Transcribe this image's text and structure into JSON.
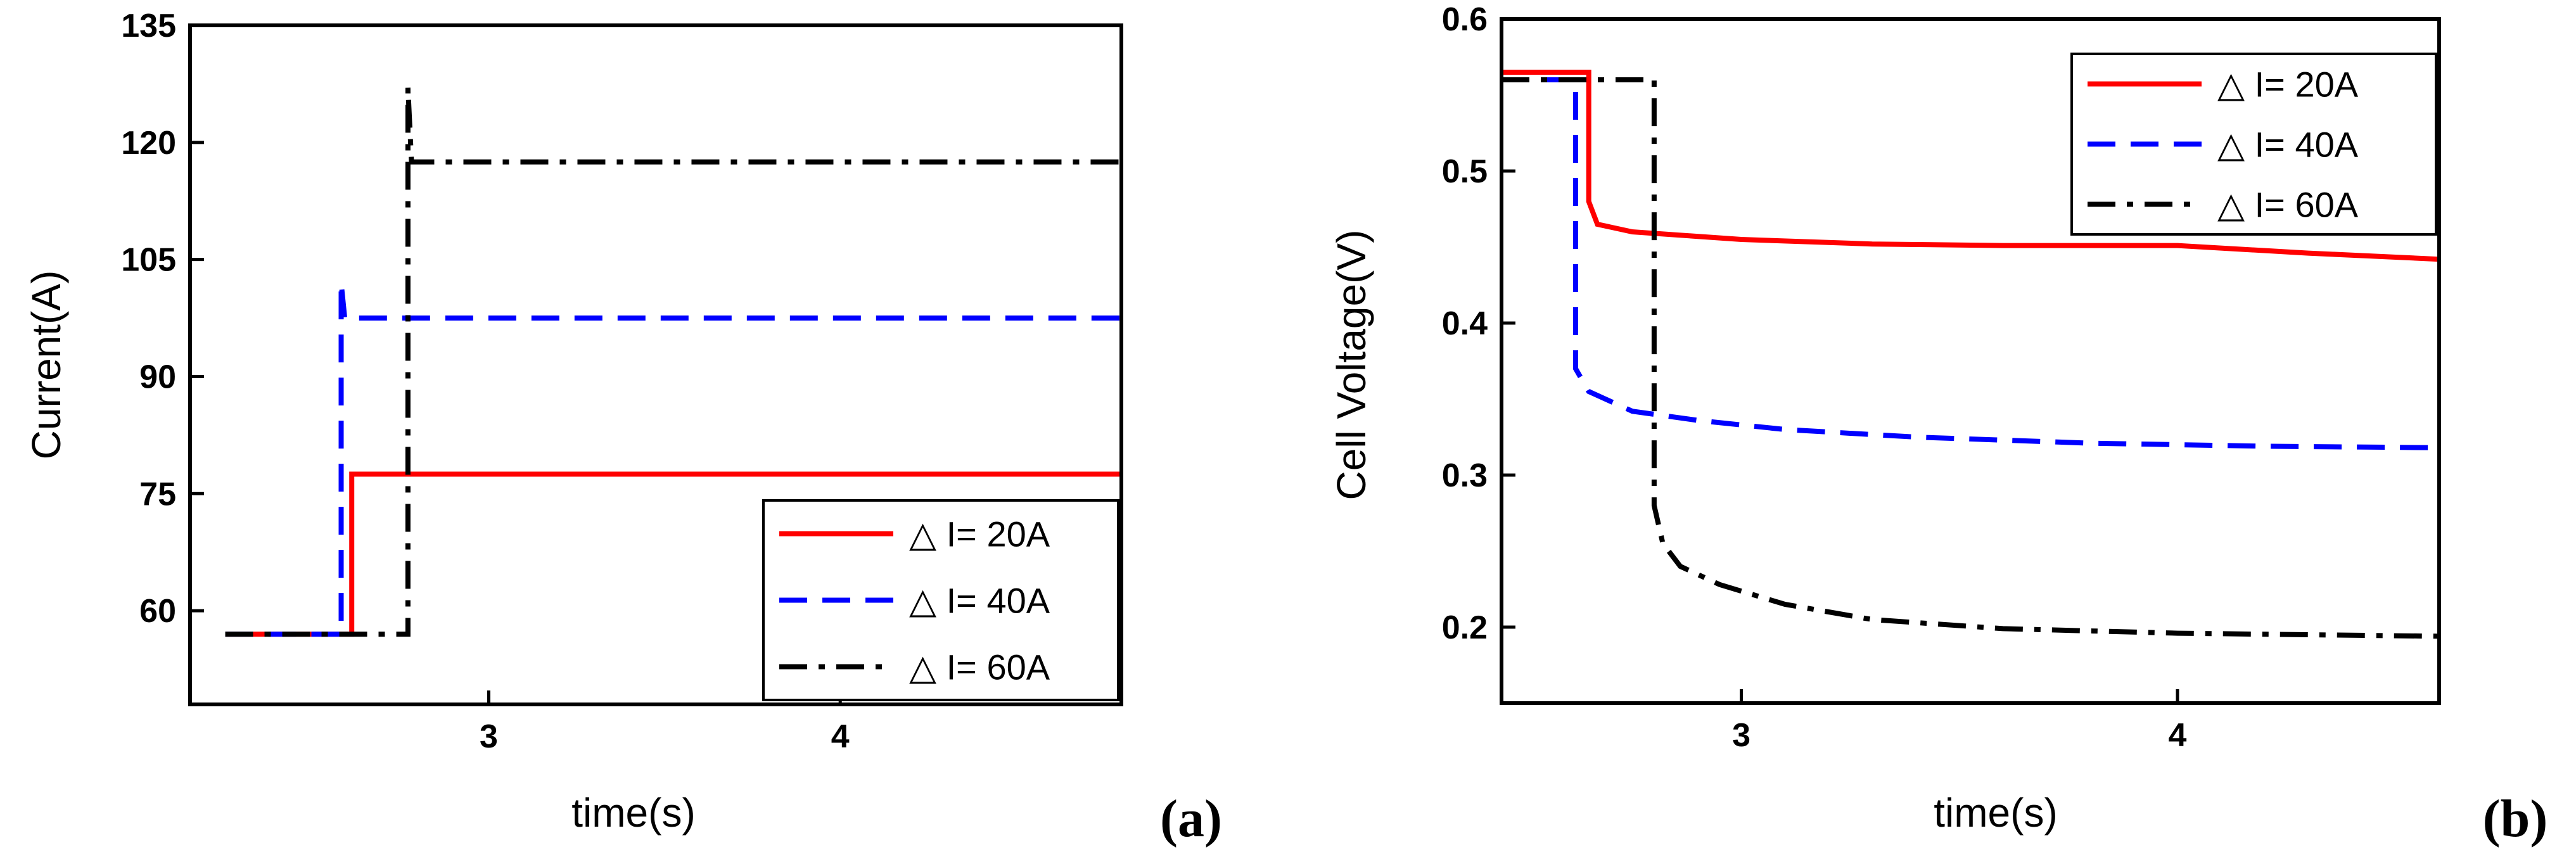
{
  "chart_data": [
    {
      "type": "line",
      "panel_label": "(a)",
      "xlabel": "time(s)",
      "ylabel": "Current(A)",
      "xlim": [
        2.15,
        4.8
      ],
      "ylim": [
        48,
        135
      ],
      "xticks": [
        3,
        4
      ],
      "xtick_labels": [
        "3",
        "4"
      ],
      "yticks": [
        60,
        75,
        90,
        105,
        120,
        135
      ],
      "ytick_labels": [
        "60",
        "75",
        "90",
        "105",
        "120",
        "135"
      ],
      "legend": {
        "placement": "bottom-right"
      },
      "series": [
        {
          "name": "△ I= 20A",
          "color": "#ff0000",
          "dash": "solid",
          "points": [
            [
              2.25,
              57
            ],
            [
              2.6,
              57
            ],
            [
              2.61,
              57
            ],
            [
              2.61,
              77.5
            ],
            [
              4.8,
              77.5
            ]
          ]
        },
        {
          "name": "△ I= 40A",
          "color": "#0000ff",
          "dash": "dash",
          "points": [
            [
              2.25,
              57
            ],
            [
              2.58,
              57
            ],
            [
              2.58,
              102
            ],
            [
              2.59,
              97.5
            ],
            [
              4.8,
              97.5
            ]
          ]
        },
        {
          "name": "△ I= 60A",
          "color": "#000000",
          "dash": "dashdot",
          "points": [
            [
              2.25,
              57
            ],
            [
              2.66,
              57
            ],
            [
              2.77,
              57
            ],
            [
              2.77,
              127
            ],
            [
              2.78,
              117.5
            ],
            [
              4.8,
              117.5
            ]
          ]
        }
      ]
    },
    {
      "type": "line",
      "panel_label": "(b)",
      "xlabel": "time(s)",
      "ylabel": "Cell Voltage(V)",
      "xlim": [
        2.45,
        4.6
      ],
      "ylim": [
        0.15,
        0.6
      ],
      "xticks": [
        3,
        4
      ],
      "xtick_labels": [
        "3",
        "4"
      ],
      "yticks": [
        0.2,
        0.3,
        0.4,
        0.5,
        0.6
      ],
      "ytick_labels": [
        "0.2",
        "0.3",
        "0.4",
        "0.5",
        "0.6"
      ],
      "legend": {
        "placement": "top-right"
      },
      "series": [
        {
          "name": "△ I= 20A",
          "color": "#ff0000",
          "dash": "solid",
          "points": [
            [
              2.45,
              0.565
            ],
            [
              2.65,
              0.565
            ],
            [
              2.65,
              0.48
            ],
            [
              2.67,
              0.465
            ],
            [
              2.75,
              0.46
            ],
            [
              3.0,
              0.455
            ],
            [
              3.3,
              0.452
            ],
            [
              3.6,
              0.451
            ],
            [
              4.0,
              0.451
            ],
            [
              4.3,
              0.446
            ],
            [
              4.6,
              0.442
            ]
          ]
        },
        {
          "name": "△ I= 40A",
          "color": "#0000ff",
          "dash": "dash",
          "points": [
            [
              2.45,
              0.56
            ],
            [
              2.62,
              0.56
            ],
            [
              2.62,
              0.37
            ],
            [
              2.65,
              0.355
            ],
            [
              2.75,
              0.342
            ],
            [
              2.9,
              0.336
            ],
            [
              3.1,
              0.33
            ],
            [
              3.4,
              0.325
            ],
            [
              3.8,
              0.321
            ],
            [
              4.2,
              0.319
            ],
            [
              4.6,
              0.318
            ]
          ]
        },
        {
          "name": "△ I= 60A",
          "color": "#000000",
          "dash": "dashdot",
          "points": [
            [
              2.45,
              0.56
            ],
            [
              2.8,
              0.56
            ],
            [
              2.8,
              0.28
            ],
            [
              2.82,
              0.255
            ],
            [
              2.86,
              0.24
            ],
            [
              2.95,
              0.228
            ],
            [
              3.1,
              0.215
            ],
            [
              3.3,
              0.205
            ],
            [
              3.6,
              0.199
            ],
            [
              4.0,
              0.196
            ],
            [
              4.3,
              0.195
            ],
            [
              4.6,
              0.194
            ]
          ]
        }
      ]
    }
  ]
}
